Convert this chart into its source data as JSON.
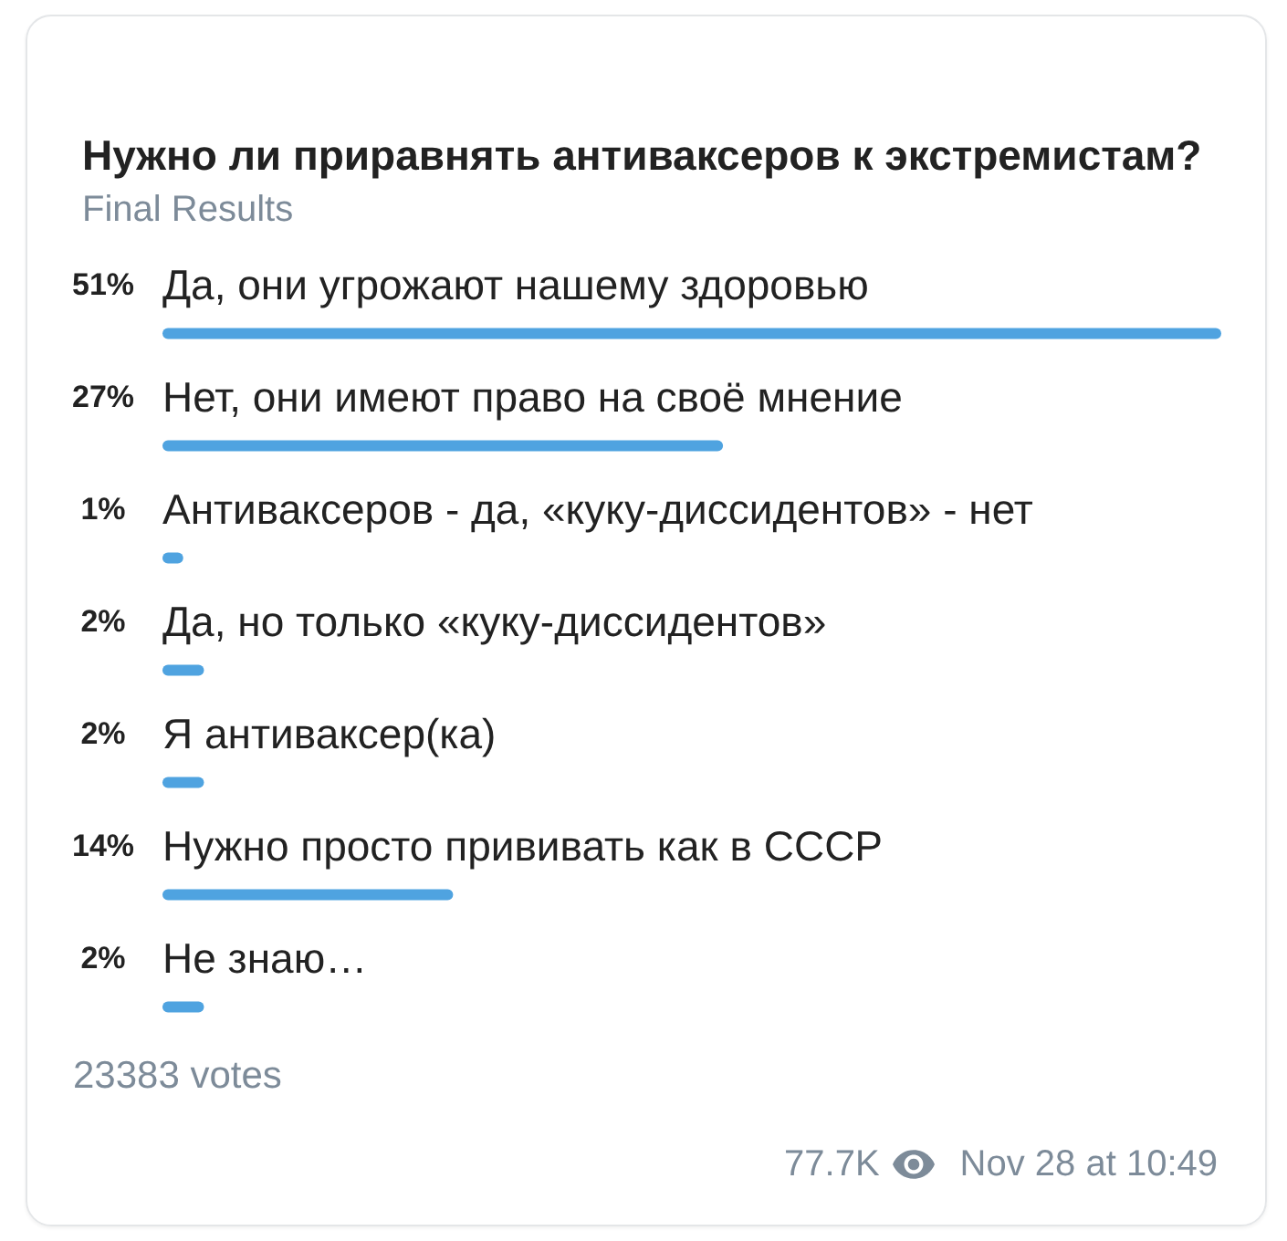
{
  "chart_data": {
    "type": "bar",
    "orientation": "horizontal",
    "title": "Нужно ли приравнять антиваксеров к экстремистам?",
    "subtitle": "Final Results",
    "categories": [
      "Да, они угрожают нашему здоровью",
      "Нет, они имеют право на своё мнение",
      "Антиваксеров - да, «куку-диссидентов» - нет",
      "Да, но только «куку-диссидентов»",
      "Я антиваксер(ка)",
      "Нужно просто прививать как в СССР",
      "Не знаю…"
    ],
    "values": [
      51,
      27,
      1,
      2,
      2,
      14,
      2
    ],
    "value_labels": [
      "51%",
      "27%",
      "1%",
      "2%",
      "2%",
      "14%",
      "2%"
    ],
    "color": "#4fa3e0",
    "annotations": [
      "23383 votes",
      "77.7K",
      "Nov 28 at 10:49"
    ]
  }
}
